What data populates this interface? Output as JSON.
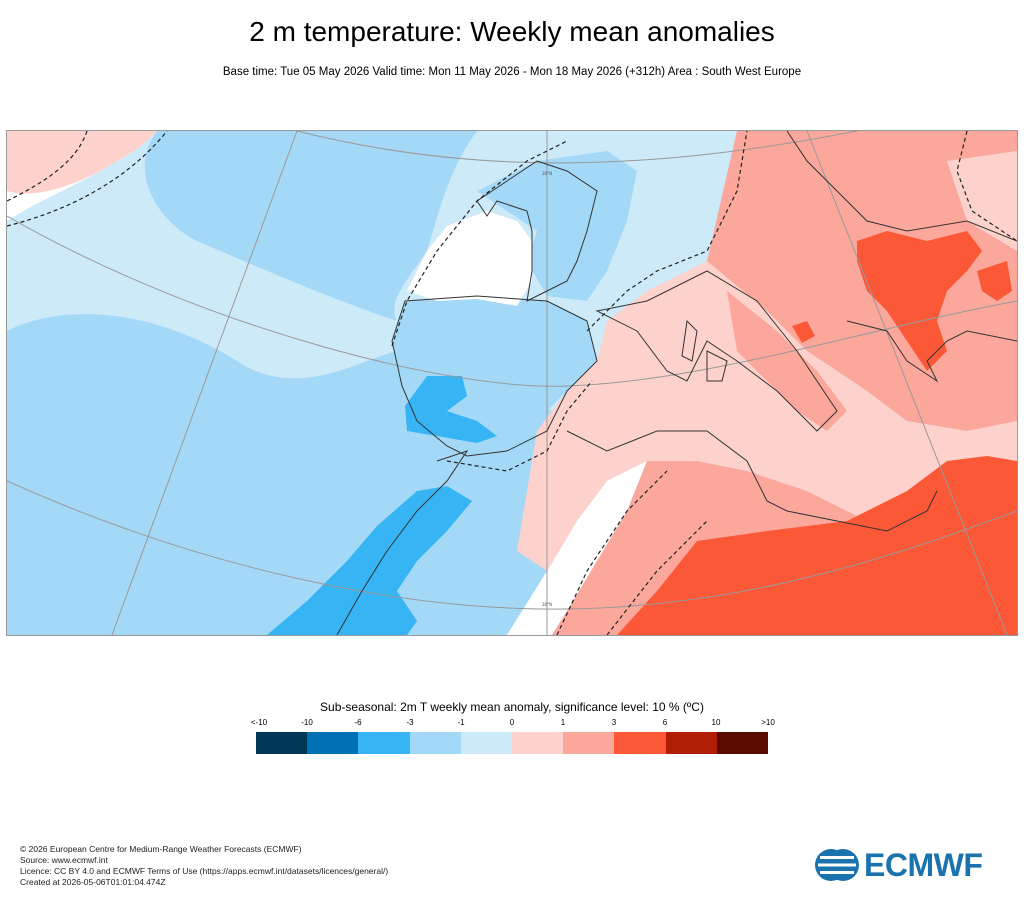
{
  "header": {
    "title": "2 m temperature: Weekly mean anomalies",
    "subtitle": "Base time: Tue 05 May 2026 Valid time: Mon 11 May 2026 - Mon 18 May 2026 (+312h) Area : South West Europe"
  },
  "map": {
    "region": "South West Europe",
    "graticule_labels": [
      "30°N",
      "30°N"
    ],
    "colors": {
      "ocean_pale": "#cdeaf9",
      "light_blue": "#a3d8f6",
      "mid_blue": "#36b4f4",
      "white": "#ffffff",
      "pale_pink": "#fdd2cd",
      "salmon": "#fba79b",
      "red_orange": "#fb5838",
      "coast": "#333333",
      "graticule": "#999999"
    }
  },
  "legend": {
    "title": "Sub-seasonal: 2m T weekly mean anomaly, significance level: 10 % (ºC)",
    "ticks": [
      "<-10",
      "-10",
      "-6",
      "-3",
      "-1",
      "0",
      "1",
      "3",
      "6",
      "10",
      ">10"
    ],
    "colors": [
      "#003756",
      "#0072b4",
      "#36b4f4",
      "#a3d8f6",
      "#cdeaf9",
      "#fdd2cd",
      "#fba79b",
      "#fb5838",
      "#b11d05",
      "#5b0c00"
    ]
  },
  "footer": {
    "lines": [
      "© 2026 European Centre for Medium-Range Weather Forecasts (ECMWF)",
      "Source: www.ecmwf.int",
      "Licence: CC BY 4.0 and ECMWF Terms of Use (https://apps.ecmwf.int/datasets/licences/general/)",
      "Created at 2026-05-06T01:01:04.474Z"
    ]
  },
  "logo": {
    "text": "ECMWF",
    "color": "#1a73ae"
  }
}
